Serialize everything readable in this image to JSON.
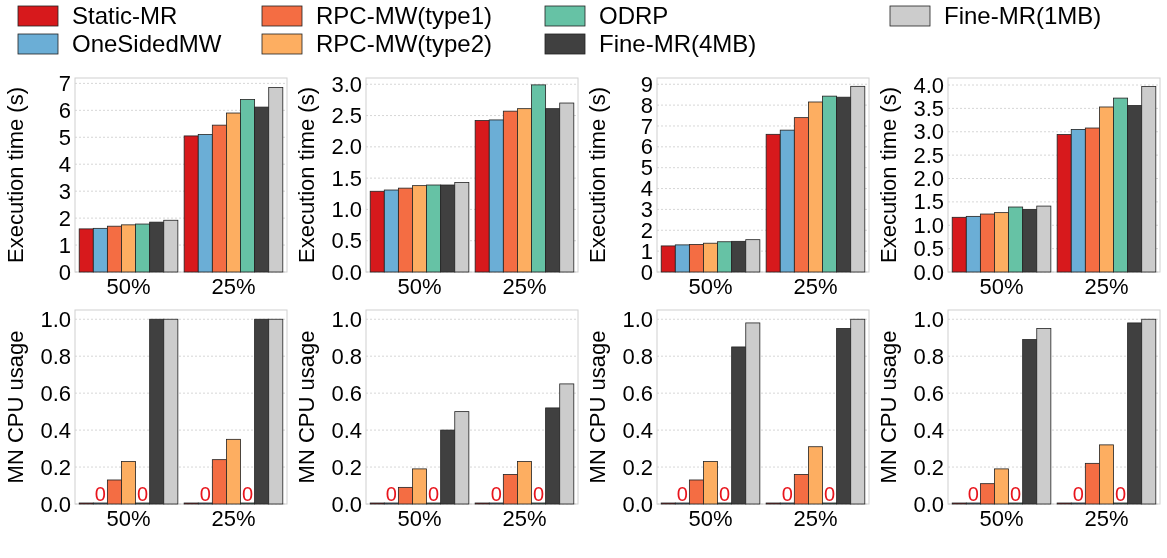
{
  "chart_data": [
    {
      "type": "bar",
      "ylabel": "Execution time (s)",
      "categories": [
        "50%",
        "25%"
      ],
      "ylim": [
        0,
        7.2
      ],
      "yticks": [
        0,
        1,
        2,
        3,
        4,
        5,
        6,
        7
      ],
      "grid": "y",
      "legend": "top",
      "series": [
        {
          "name": "Static-MR",
          "color": "#d7191c",
          "values": [
            1.6,
            5.05
          ]
        },
        {
          "name": "OneSidedMW",
          "color": "#6baed6",
          "values": [
            1.62,
            5.1
          ]
        },
        {
          "name": "RPC-MW(type1)",
          "color": "#f46d43",
          "values": [
            1.7,
            5.45
          ]
        },
        {
          "name": "RPC-MW(type2)",
          "color": "#fdae61",
          "values": [
            1.75,
            5.9
          ]
        },
        {
          "name": "ODRP",
          "color": "#66c2a5",
          "values": [
            1.78,
            6.4
          ]
        },
        {
          "name": "Fine-MR(4MB)",
          "color": "#404040",
          "values": [
            1.85,
            6.12
          ]
        },
        {
          "name": "Fine-MR(1MB)",
          "color": "#cccccc",
          "values": [
            1.92,
            6.85
          ]
        }
      ]
    },
    {
      "type": "bar",
      "ylabel": "Execution time (s)",
      "categories": [
        "50%",
        "25%"
      ],
      "ylim": [
        0,
        3.1
      ],
      "yticks": [
        {
          "value": 0,
          "label": "0.0"
        },
        0.5,
        {
          "value": 1,
          "label": "1.0"
        },
        1.5,
        {
          "value": 2,
          "label": "2.0"
        },
        2.5,
        {
          "value": 3,
          "label": "3.0"
        }
      ],
      "grid": "y",
      "series": [
        {
          "color": "#d7191c",
          "values": [
            1.29,
            2.42
          ]
        },
        {
          "color": "#6baed6",
          "values": [
            1.31,
            2.43
          ]
        },
        {
          "color": "#f46d43",
          "values": [
            1.34,
            2.57
          ]
        },
        {
          "color": "#fdae61",
          "values": [
            1.38,
            2.61
          ]
        },
        {
          "color": "#66c2a5",
          "values": [
            1.39,
            2.99
          ]
        },
        {
          "color": "#404040",
          "values": [
            1.39,
            2.61
          ]
        },
        {
          "color": "#cccccc",
          "values": [
            1.43,
            2.7
          ]
        }
      ]
    },
    {
      "type": "bar",
      "ylabel": "Execution time (s)",
      "categories": [
        "50%",
        "25%"
      ],
      "ylim": [
        0,
        9.3
      ],
      "yticks": [
        0,
        1,
        2,
        3,
        4,
        5,
        6,
        7,
        8,
        9
      ],
      "grid": "y",
      "series": [
        {
          "color": "#d7191c",
          "values": [
            1.25,
            6.6
          ]
        },
        {
          "color": "#6baed6",
          "values": [
            1.3,
            6.8
          ]
        },
        {
          "color": "#f46d43",
          "values": [
            1.32,
            7.4
          ]
        },
        {
          "color": "#fdae61",
          "values": [
            1.38,
            8.15
          ]
        },
        {
          "color": "#66c2a5",
          "values": [
            1.45,
            8.43
          ]
        },
        {
          "color": "#404040",
          "values": [
            1.47,
            8.38
          ]
        },
        {
          "color": "#cccccc",
          "values": [
            1.55,
            8.9
          ]
        }
      ]
    },
    {
      "type": "bar",
      "ylabel": "Execution time (s)",
      "categories": [
        "50%",
        "25%"
      ],
      "ylim": [
        0,
        4.15
      ],
      "yticks": [
        {
          "value": 0,
          "label": "0.0"
        },
        0.5,
        {
          "value": 1,
          "label": "1.0"
        },
        1.5,
        {
          "value": 2,
          "label": "2.0"
        },
        2.5,
        {
          "value": 3,
          "label": "3.0"
        },
        3.5,
        {
          "value": 4,
          "label": "4.0"
        }
      ],
      "grid": "y",
      "series": [
        {
          "color": "#d7191c",
          "values": [
            1.17,
            2.94
          ]
        },
        {
          "color": "#6baed6",
          "values": [
            1.19,
            3.05
          ]
        },
        {
          "color": "#f46d43",
          "values": [
            1.24,
            3.08
          ]
        },
        {
          "color": "#fdae61",
          "values": [
            1.27,
            3.53
          ]
        },
        {
          "color": "#66c2a5",
          "values": [
            1.39,
            3.72
          ]
        },
        {
          "color": "#404040",
          "values": [
            1.34,
            3.56
          ]
        },
        {
          "color": "#cccccc",
          "values": [
            1.41,
            3.97
          ]
        }
      ]
    },
    {
      "type": "bar",
      "ylabel": "MN CPU usage",
      "categories": [
        "50%",
        "25%"
      ],
      "ylim": [
        0,
        1.05
      ],
      "yticks": [
        {
          "value": 0,
          "label": "0.0"
        },
        0.2,
        0.4,
        0.6,
        0.8,
        {
          "value": 1,
          "label": "1.0"
        }
      ],
      "grid": "y",
      "series": [
        {
          "color": "#d7191c",
          "values": [
            0,
            0
          ]
        },
        {
          "color": "#6baed6",
          "values": [
            0,
            0
          ],
          "value_labels": [
            "0",
            "0"
          ]
        },
        {
          "color": "#f46d43",
          "values": [
            0.13,
            0.24
          ]
        },
        {
          "color": "#fdae61",
          "values": [
            0.23,
            0.35
          ]
        },
        {
          "color": "#66c2a5",
          "values": [
            0,
            0
          ],
          "value_labels": [
            "0",
            "0"
          ]
        },
        {
          "color": "#404040",
          "values": [
            1.0,
            1.0
          ]
        },
        {
          "color": "#cccccc",
          "values": [
            1.0,
            1.0
          ]
        }
      ]
    },
    {
      "type": "bar",
      "ylabel": "MN CPU usage",
      "categories": [
        "50%",
        "25%"
      ],
      "ylim": [
        0,
        1.05
      ],
      "yticks": [
        {
          "value": 0,
          "label": "0.0"
        },
        0.2,
        0.4,
        0.6,
        0.8,
        {
          "value": 1,
          "label": "1.0"
        }
      ],
      "grid": "y",
      "series": [
        {
          "color": "#d7191c",
          "values": [
            0,
            0
          ]
        },
        {
          "color": "#6baed6",
          "values": [
            0,
            0
          ],
          "value_labels": [
            "0",
            "0"
          ]
        },
        {
          "color": "#f46d43",
          "values": [
            0.09,
            0.16
          ]
        },
        {
          "color": "#fdae61",
          "values": [
            0.19,
            0.23
          ]
        },
        {
          "color": "#66c2a5",
          "values": [
            0,
            0
          ],
          "value_labels": [
            "0",
            "0"
          ]
        },
        {
          "color": "#404040",
          "values": [
            0.4,
            0.52
          ]
        },
        {
          "color": "#cccccc",
          "values": [
            0.5,
            0.65
          ]
        }
      ]
    },
    {
      "type": "bar",
      "ylabel": "MN CPU usage",
      "categories": [
        "50%",
        "25%"
      ],
      "ylim": [
        0,
        1.05
      ],
      "yticks": [
        {
          "value": 0,
          "label": "0.0"
        },
        0.2,
        0.4,
        0.6,
        0.8,
        {
          "value": 1,
          "label": "1.0"
        }
      ],
      "grid": "y",
      "series": [
        {
          "color": "#d7191c",
          "values": [
            0,
            0
          ]
        },
        {
          "color": "#6baed6",
          "values": [
            0,
            0
          ],
          "value_labels": [
            "0",
            "0"
          ]
        },
        {
          "color": "#f46d43",
          "values": [
            0.13,
            0.16
          ]
        },
        {
          "color": "#fdae61",
          "values": [
            0.23,
            0.31
          ]
        },
        {
          "color": "#66c2a5",
          "values": [
            0,
            0
          ],
          "value_labels": [
            "0",
            "0"
          ]
        },
        {
          "color": "#404040",
          "values": [
            0.85,
            0.95
          ]
        },
        {
          "color": "#cccccc",
          "values": [
            0.98,
            1.0
          ]
        }
      ]
    },
    {
      "type": "bar",
      "ylabel": "MN CPU usage",
      "categories": [
        "50%",
        "25%"
      ],
      "ylim": [
        0,
        1.05
      ],
      "yticks": [
        {
          "value": 0,
          "label": "0.0"
        },
        0.2,
        0.4,
        0.6,
        0.8,
        {
          "value": 1,
          "label": "1.0"
        }
      ],
      "grid": "y",
      "series": [
        {
          "color": "#d7191c",
          "values": [
            0,
            0
          ]
        },
        {
          "color": "#6baed6",
          "values": [
            0,
            0
          ],
          "value_labels": [
            "0",
            "0"
          ]
        },
        {
          "color": "#f46d43",
          "values": [
            0.11,
            0.22
          ]
        },
        {
          "color": "#fdae61",
          "values": [
            0.19,
            0.32
          ]
        },
        {
          "color": "#66c2a5",
          "values": [
            0,
            0
          ],
          "value_labels": [
            "0",
            "0"
          ]
        },
        {
          "color": "#404040",
          "values": [
            0.89,
            0.98
          ]
        },
        {
          "color": "#cccccc",
          "values": [
            0.95,
            1.0
          ]
        }
      ]
    }
  ]
}
